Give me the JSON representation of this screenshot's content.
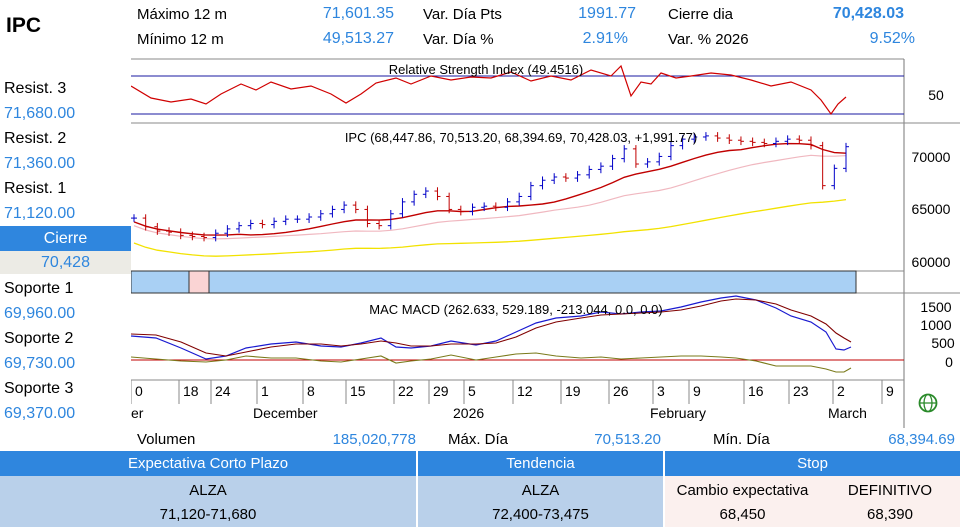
{
  "symbol": "IPC",
  "stats": {
    "max12_label": "Máximo 12 m",
    "max12_value": "71,601.35",
    "min12_label": "Mínimo 12 m",
    "min12_value": "49,513.27",
    "var_pts_label": "Var. Día Pts",
    "var_pts_value": "1991.77",
    "var_pct_label": "Var. Día %",
    "var_pct_value": "2.91%",
    "close_label": "Cierre dia",
    "close_value": "70,428.03",
    "ytd_label": "Var. % 2026",
    "ytd_value": "9.52%"
  },
  "levels": {
    "r3_label": "Resist. 3",
    "r3_value": "71,680.00",
    "r2_label": "Resist. 2",
    "r2_value": "71,360.00",
    "r1_label": "Resist. 1",
    "r1_value": "71,120.00",
    "close_label": "Cierre",
    "close_value": "70,428",
    "s1_label": "Soporte 1",
    "s1_value": "69,960.00",
    "s2_label": "Soporte 2",
    "s2_value": "69,730.00",
    "s3_label": "Soporte 3",
    "s3_value": "69,370.00"
  },
  "chart_data": {
    "type": "line",
    "rsi_title": "Relative Strength Index (49.4516)",
    "rsi_axis_ticks": [
      "50"
    ],
    "price_title": "IPC (68,447.86, 70,513.20, 68,394.69, 70,428.03, +1,991.77)",
    "price_axis_ticks": [
      "70000",
      "65000",
      "60000"
    ],
    "price_ylim": [
      59000,
      72500
    ],
    "macd_title": "MAC MACD (262.633, 529.189, -213.044, 0.0, 0.0)",
    "macd_axis_ticks": [
      "1500",
      "1000",
      "500",
      "0"
    ],
    "x_day_ticks": [
      "0",
      "18",
      "24",
      "1",
      "8",
      "15",
      "22",
      "29",
      "5",
      "12",
      "19",
      "26",
      "3",
      "9",
      "16",
      "23",
      "2",
      "9"
    ],
    "x_month_ticks": [
      "er",
      "December",
      "2026",
      "February",
      "March"
    ],
    "series": [
      {
        "values": [
          63800,
          63000,
          62600,
          62500,
          62200,
          62100,
          62000,
          62400,
          62800,
          63100,
          63300,
          63200,
          63500,
          63700,
          63700,
          63900,
          64200,
          64600,
          65000,
          64600,
          63300,
          63100,
          64200,
          65300,
          66000,
          66300,
          65800,
          64600,
          64400,
          64800,
          64900,
          64800,
          65300,
          65800,
          66800,
          67300,
          67600,
          67500,
          67800,
          68300,
          68600,
          69300,
          70200,
          68800,
          69000,
          69500,
          70500,
          71100,
          71300,
          71400,
          71200,
          71000,
          70900,
          70800,
          70700,
          70900,
          71100,
          71000,
          70500,
          66800,
          68400,
          70400
        ]
      }
    ]
  },
  "footer": {
    "volume_label": "Volumen",
    "volume_value": "185,020,778",
    "max_day_label": "Máx. Día",
    "max_day_value": "70,513.20",
    "min_day_label": "Mín. Día",
    "min_day_value": "68,394.69"
  },
  "outlook": {
    "short_header": "Expectativa Corto Plazo",
    "short_signal": "ALZA",
    "short_range": "71,120-71,680",
    "trend_header": "Tendencia",
    "trend_signal": "ALZA",
    "trend_range": "72,400-73,475",
    "stop_header": "Stop",
    "stop_change_label": "Cambio expectativa",
    "stop_change_value": "68,450",
    "stop_final_label": "DEFINITIVO",
    "stop_final_value": "68,390"
  },
  "colors": {
    "accent": "#2f86de",
    "value_text": "#2e86de"
  },
  "icons": {
    "globe": "globe-icon"
  }
}
